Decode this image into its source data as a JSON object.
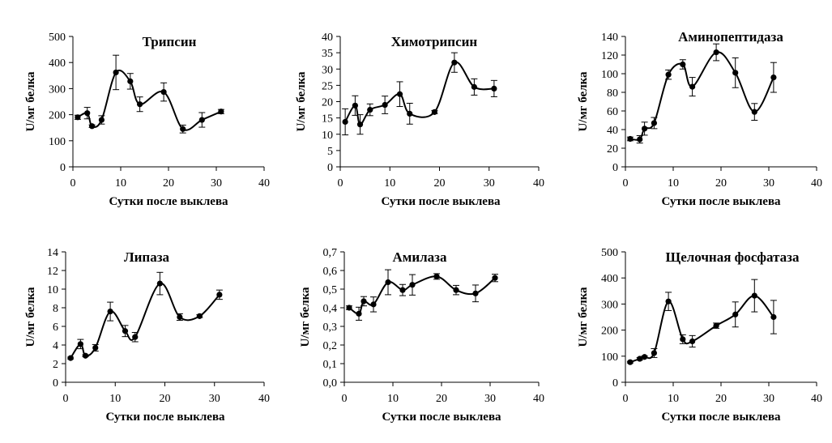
{
  "chart_data": [
    {
      "type": "line",
      "title": "Трипсин",
      "xlabel": "Сутки после выклева",
      "ylabel": "U/мг белка",
      "xlim": [
        0,
        40
      ],
      "ylim": [
        0,
        500
      ],
      "x_ticks": [
        "0",
        "10",
        "20",
        "30",
        "40"
      ],
      "y_ticks": [
        "0",
        "100",
        "200",
        "300",
        "400",
        "500"
      ],
      "x_tick_values": [
        0,
        10,
        20,
        30,
        40
      ],
      "y_tick_values": [
        0,
        100,
        200,
        300,
        400,
        500
      ],
      "grid": false,
      "series": [
        {
          "name": "Трипсин",
          "x": [
            1,
            3,
            4,
            6,
            9,
            12,
            14,
            19,
            23,
            27,
            31
          ],
          "y": [
            190,
            206,
            156,
            180,
            362,
            328,
            240,
            287,
            145,
            180,
            212
          ],
          "error": [
            8,
            22,
            5,
            16,
            66,
            30,
            28,
            35,
            15,
            28,
            8
          ]
        }
      ]
    },
    {
      "type": "line",
      "title": "Химотрипсин",
      "xlabel": "Сутки после выклева",
      "ylabel": "U/мг белка",
      "xlim": [
        0,
        40
      ],
      "ylim": [
        0,
        40
      ],
      "x_ticks": [
        "0",
        "10",
        "20",
        "30",
        "40"
      ],
      "y_ticks": [
        "0",
        "5",
        "10",
        "15",
        "20",
        "25",
        "30",
        "35",
        "40"
      ],
      "x_tick_values": [
        0,
        10,
        20,
        30,
        40
      ],
      "y_tick_values": [
        0,
        5,
        10,
        15,
        20,
        25,
        30,
        35,
        40
      ],
      "grid": false,
      "series": [
        {
          "name": "Химотрипсин",
          "x": [
            1,
            3,
            4,
            6,
            9,
            12,
            14,
            19,
            23,
            27,
            31
          ],
          "y": [
            13.8,
            18.8,
            13,
            17.5,
            19,
            22.3,
            16.3,
            16.8,
            32,
            24.5,
            24
          ],
          "error": [
            4,
            3,
            3,
            1.8,
            2.7,
            3.8,
            3.2,
            0.5,
            3,
            2.5,
            2.5
          ]
        }
      ]
    },
    {
      "type": "line",
      "title": "Аминопептидаза",
      "xlabel": "Сутки после выклева",
      "ylabel": "U/мг белка",
      "xlim": [
        0,
        40
      ],
      "ylim": [
        0,
        140
      ],
      "x_ticks": [
        "0",
        "10",
        "20",
        "30",
        "40"
      ],
      "y_ticks": [
        "0",
        "20",
        "40",
        "60",
        "80",
        "100",
        "120",
        "140"
      ],
      "x_tick_values": [
        0,
        10,
        20,
        30,
        40
      ],
      "y_tick_values": [
        0,
        20,
        40,
        60,
        80,
        100,
        120,
        140
      ],
      "grid": false,
      "series": [
        {
          "name": "Аминопептидаза",
          "x": [
            1,
            3,
            4,
            6,
            9,
            12,
            14,
            19,
            23,
            27,
            31
          ],
          "y": [
            30,
            29.5,
            41,
            47,
            99,
            110,
            86,
            123,
            101,
            59,
            96
          ],
          "error": [
            2,
            4,
            7,
            6,
            5,
            5,
            10,
            9,
            16,
            9,
            16
          ]
        }
      ]
    },
    {
      "type": "line",
      "title": "Липаза",
      "xlabel": "Сутки после выклева",
      "ylabel": "U/мг белка",
      "xlim": [
        0,
        40
      ],
      "ylim": [
        0,
        14
      ],
      "x_ticks": [
        "0",
        "10",
        "20",
        "30",
        "40"
      ],
      "y_ticks": [
        "0",
        "2",
        "4",
        "6",
        "8",
        "10",
        "12",
        "14"
      ],
      "x_tick_values": [
        0,
        10,
        20,
        30,
        40
      ],
      "y_tick_values": [
        0,
        2,
        4,
        6,
        8,
        10,
        12,
        14
      ],
      "grid": false,
      "series": [
        {
          "name": "Липаза",
          "x": [
            1,
            3,
            4,
            6,
            9,
            12,
            14,
            19,
            23,
            27,
            31
          ],
          "y": [
            2.6,
            4.1,
            2.85,
            3.7,
            7.6,
            5.5,
            4.85,
            10.6,
            7.0,
            7.1,
            9.4
          ],
          "error": [
            0.1,
            0.5,
            0.1,
            0.35,
            1.0,
            0.6,
            0.5,
            1.2,
            0.35,
            0.15,
            0.5
          ]
        }
      ]
    },
    {
      "type": "line",
      "title": "Амилаза",
      "xlabel": "Сутки после выклева",
      "ylabel": "U/мг белка",
      "xlim": [
        0,
        40
      ],
      "ylim": [
        0,
        0.7
      ],
      "x_ticks": [
        "0",
        "10",
        "20",
        "30",
        "40"
      ],
      "y_ticks": [
        "0,0",
        "0,1",
        "0,2",
        "0,3",
        "0,4",
        "0,5",
        "0,6",
        "0,7"
      ],
      "x_tick_values": [
        0,
        10,
        20,
        30,
        40
      ],
      "y_tick_values": [
        0,
        0.1,
        0.2,
        0.3,
        0.4,
        0.5,
        0.6,
        0.7
      ],
      "grid": false,
      "series": [
        {
          "name": "Амилаза",
          "x": [
            1,
            3,
            4,
            6,
            9,
            12,
            14,
            19,
            23,
            27,
            31
          ],
          "y": [
            0.4,
            0.368,
            0.435,
            0.418,
            0.537,
            0.495,
            0.523,
            0.568,
            0.495,
            0.477,
            0.56
          ],
          "error": [
            0.01,
            0.035,
            0.025,
            0.04,
            0.067,
            0.03,
            0.055,
            0.015,
            0.025,
            0.045,
            0.02
          ]
        }
      ]
    },
    {
      "type": "line",
      "title": "Щелочная фосфатаза",
      "xlabel": "Сутки после выклева",
      "ylabel": "U/мг белка",
      "xlim": [
        0,
        40
      ],
      "ylim": [
        0,
        500
      ],
      "x_ticks": [
        "0",
        "10",
        "20",
        "30",
        "40"
      ],
      "y_ticks": [
        "0",
        "100",
        "200",
        "300",
        "400",
        "500"
      ],
      "x_tick_values": [
        0,
        10,
        20,
        30,
        40
      ],
      "y_tick_values": [
        0,
        100,
        200,
        300,
        400,
        500
      ],
      "grid": false,
      "series": [
        {
          "name": "Щелочная фосфатаза",
          "x": [
            1,
            3,
            4,
            6,
            9,
            12,
            14,
            19,
            23,
            27,
            31
          ],
          "y": [
            77,
            90,
            97,
            112,
            310,
            165,
            157,
            217,
            260,
            332,
            250
          ],
          "error": [
            3,
            5,
            4,
            17,
            35,
            17,
            22,
            10,
            48,
            62,
            64
          ]
        }
      ]
    }
  ]
}
